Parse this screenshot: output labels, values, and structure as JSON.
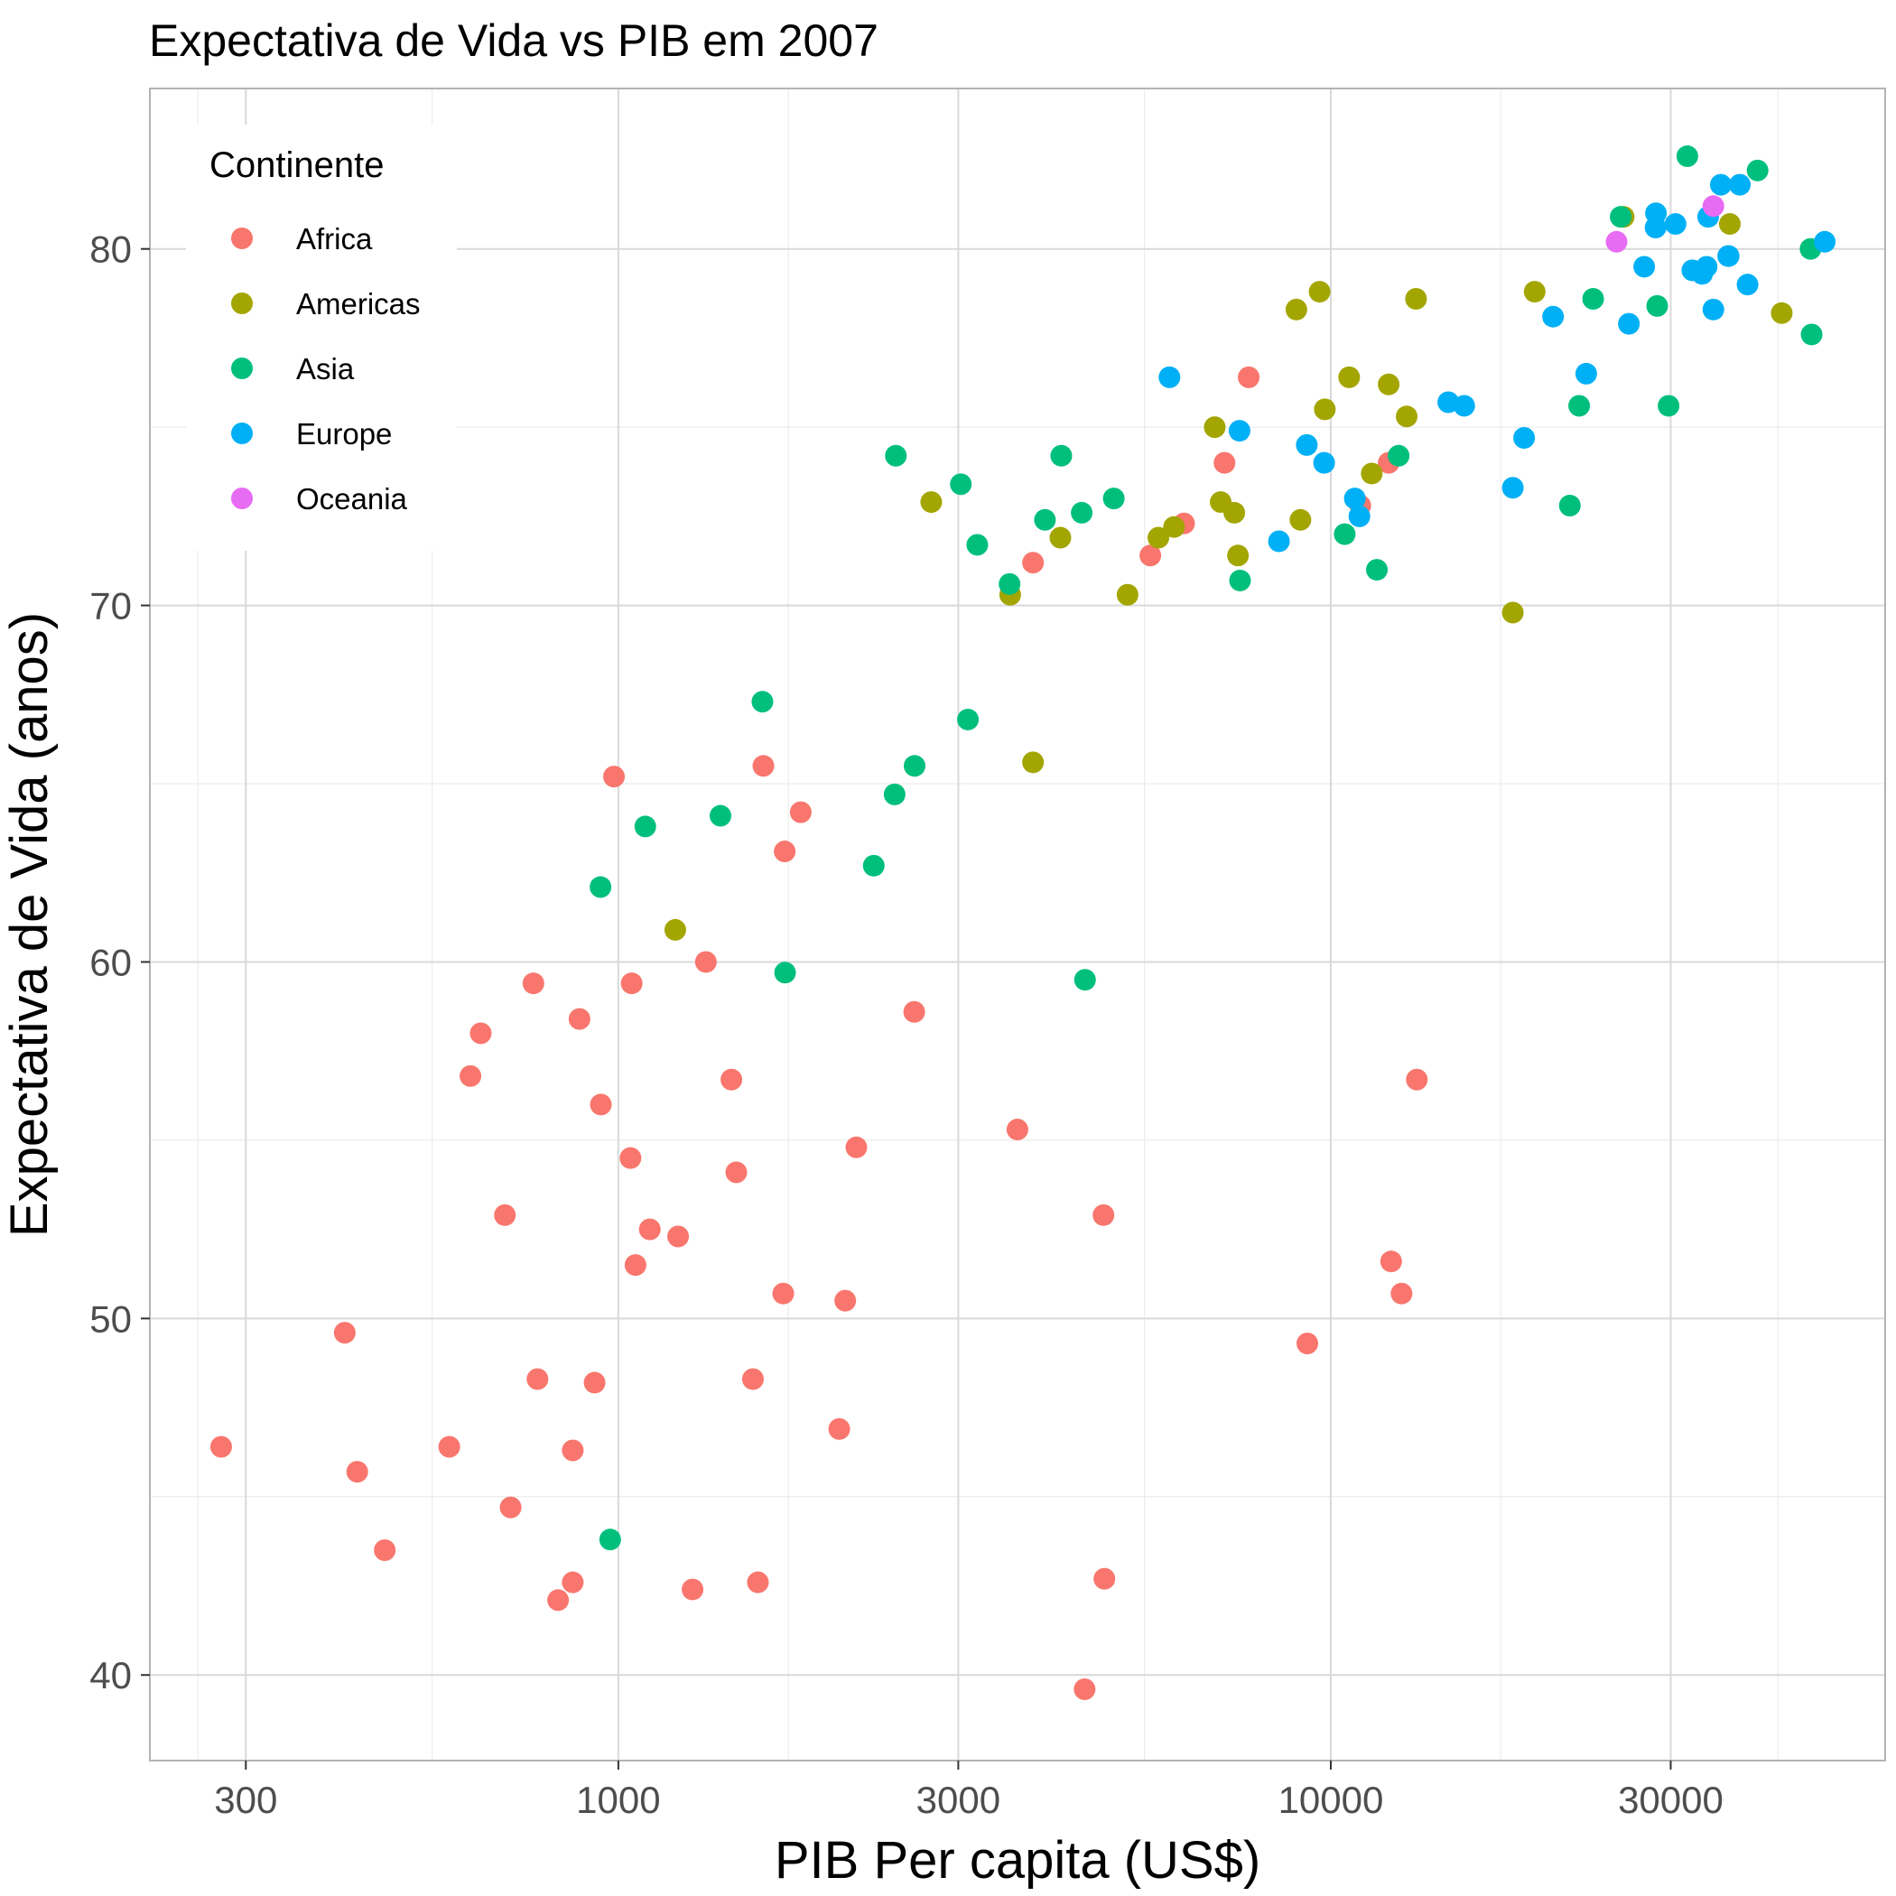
{
  "chart_data": {
    "type": "scatter",
    "title": "Expectativa de Vida vs PIB em 2007",
    "xlabel": "PIB Per capita (US$)",
    "ylabel": "Expectativa de Vida (anos)",
    "x_scale": "log10",
    "xlim": [
      220,
      60000
    ],
    "ylim": [
      37.6,
      84.5
    ],
    "x_ticks": [
      300,
      1000,
      3000,
      10000,
      30000
    ],
    "x_tick_labels": [
      "300",
      "1000",
      "3000",
      "10000",
      "30000"
    ],
    "y_ticks": [
      40,
      50,
      60,
      70,
      80
    ],
    "y_tick_labels": [
      "40",
      "50",
      "60",
      "70",
      "80"
    ],
    "grid": true,
    "legend": {
      "title": "Continente",
      "position": "top-left"
    },
    "series": [
      {
        "name": "Africa",
        "color": "#F8766D",
        "points": [
          [
            277,
            46.4
          ],
          [
            413,
            49.6
          ],
          [
            430,
            45.7
          ],
          [
            470,
            43.5
          ],
          [
            579,
            46.4
          ],
          [
            620,
            56.8
          ],
          [
            641,
            58.0
          ],
          [
            693,
            52.9
          ],
          [
            706,
            44.7
          ],
          [
            760,
            59.4
          ],
          [
            770,
            48.3
          ],
          [
            823,
            42.1
          ],
          [
            863,
            42.6
          ],
          [
            863,
            46.3
          ],
          [
            882,
            58.4
          ],
          [
            926,
            48.2
          ],
          [
            945,
            56.0
          ],
          [
            986,
            65.2
          ],
          [
            1040,
            54.5
          ],
          [
            1044,
            59.4
          ],
          [
            1057,
            51.5
          ],
          [
            1107,
            52.5
          ],
          [
            1213,
            52.3
          ],
          [
            1271,
            42.4
          ],
          [
            1327,
            60.0
          ],
          [
            1441,
            56.7
          ],
          [
            1464,
            54.1
          ],
          [
            1545,
            48.3
          ],
          [
            1570,
            42.6
          ],
          [
            1598,
            65.5
          ],
          [
            1704,
            50.7
          ],
          [
            1712,
            63.1
          ],
          [
            1803,
            64.2
          ],
          [
            2042,
            46.9
          ],
          [
            2082,
            50.5
          ],
          [
            2158,
            54.8
          ],
          [
            2602,
            58.6
          ],
          [
            3632,
            55.3
          ],
          [
            3820,
            71.2
          ],
          [
            4513,
            39.6
          ],
          [
            4797,
            52.9
          ],
          [
            4811,
            42.7
          ],
          [
            5581,
            71.4
          ],
          [
            6223,
            72.3
          ],
          [
            7093,
            74.0
          ],
          [
            7670,
            76.4
          ],
          [
            9270,
            49.3
          ],
          [
            11000,
            72.8
          ],
          [
            12058,
            74.0
          ],
          [
            12154,
            51.6
          ],
          [
            12570,
            50.7
          ],
          [
            13206,
            56.7
          ]
        ]
      },
      {
        "name": "Americas",
        "color": "#A3A500",
        "points": [
          [
            1202,
            60.9
          ],
          [
            2749,
            72.9
          ],
          [
            3548,
            70.3
          ],
          [
            3820,
            65.6
          ],
          [
            4173,
            71.9
          ],
          [
            5185,
            70.3
          ],
          [
            5728,
            71.9
          ],
          [
            6025,
            72.2
          ],
          [
            6873,
            75.0
          ],
          [
            7006,
            72.9
          ],
          [
            7321,
            72.6
          ],
          [
            7408,
            71.4
          ],
          [
            8948,
            78.3
          ],
          [
            9066,
            72.4
          ],
          [
            9645,
            78.8
          ],
          [
            9809,
            75.5
          ],
          [
            10612,
            76.4
          ],
          [
            11416,
            73.7
          ],
          [
            12057,
            76.2
          ],
          [
            12779,
            75.3
          ],
          [
            13172,
            78.6
          ],
          [
            18009,
            69.8
          ],
          [
            19329,
            78.8
          ],
          [
            25768,
            80.9
          ],
          [
            36319,
            80.7
          ],
          [
            42952,
            78.2
          ]
        ]
      },
      {
        "name": "Asia",
        "color": "#00BF7D",
        "points": [
          [
            944,
            62.1
          ],
          [
            974,
            43.8
          ],
          [
            1091,
            63.8
          ],
          [
            1391,
            64.1
          ],
          [
            1593,
            67.3
          ],
          [
            1714,
            59.7
          ],
          [
            2283,
            62.7
          ],
          [
            2452,
            74.2
          ],
          [
            2605,
            65.5
          ],
          [
            2442,
            64.7
          ],
          [
            3025,
            73.4
          ],
          [
            3095,
            66.8
          ],
          [
            3190,
            71.7
          ],
          [
            3541,
            70.6
          ],
          [
            3970,
            72.4
          ],
          [
            4185,
            74.2
          ],
          [
            4471,
            72.6
          ],
          [
            4519,
            59.5
          ],
          [
            4959,
            73.0
          ],
          [
            7458,
            70.7
          ],
          [
            10461,
            72.0
          ],
          [
            11606,
            71.0
          ],
          [
            12452,
            74.2
          ],
          [
            21655,
            72.8
          ],
          [
            22316,
            75.6
          ],
          [
            23348,
            78.6
          ],
          [
            25523,
            80.9
          ],
          [
            28718,
            78.4
          ],
          [
            29796,
            75.6
          ],
          [
            31656,
            82.6
          ],
          [
            39725,
            82.2
          ],
          [
            47143,
            80.0
          ],
          [
            47307,
            77.6
          ]
        ]
      },
      {
        "name": "Europe",
        "color": "#00B0F6",
        "points": [
          [
            5937,
            76.4
          ],
          [
            7446,
            74.9
          ],
          [
            8458,
            71.8
          ],
          [
            9254,
            74.5
          ],
          [
            9787,
            74.0
          ],
          [
            10808,
            73.0
          ],
          [
            10969,
            72.5
          ],
          [
            14619,
            75.7
          ],
          [
            15390,
            75.6
          ],
          [
            18009,
            73.3
          ],
          [
            18678,
            74.7
          ],
          [
            20510,
            78.1
          ],
          [
            22833,
            76.5
          ],
          [
            26206,
            77.9
          ],
          [
            27538,
            79.5
          ],
          [
            28570,
            80.6
          ],
          [
            28604,
            81.0
          ],
          [
            30470,
            80.7
          ],
          [
            32170,
            79.4
          ],
          [
            33207,
            79.3
          ],
          [
            33693,
            79.5
          ],
          [
            33860,
            80.9
          ],
          [
            34435,
            78.3
          ],
          [
            35278,
            81.8
          ],
          [
            36126,
            79.8
          ],
          [
            36181,
            79.8
          ],
          [
            37506,
            81.8
          ],
          [
            38460,
            79.0
          ],
          [
            49357,
            80.2
          ]
        ]
      },
      {
        "name": "Oceania",
        "color": "#E76BF3",
        "points": [
          [
            25185,
            80.2
          ],
          [
            34435,
            81.2
          ]
        ]
      }
    ]
  }
}
